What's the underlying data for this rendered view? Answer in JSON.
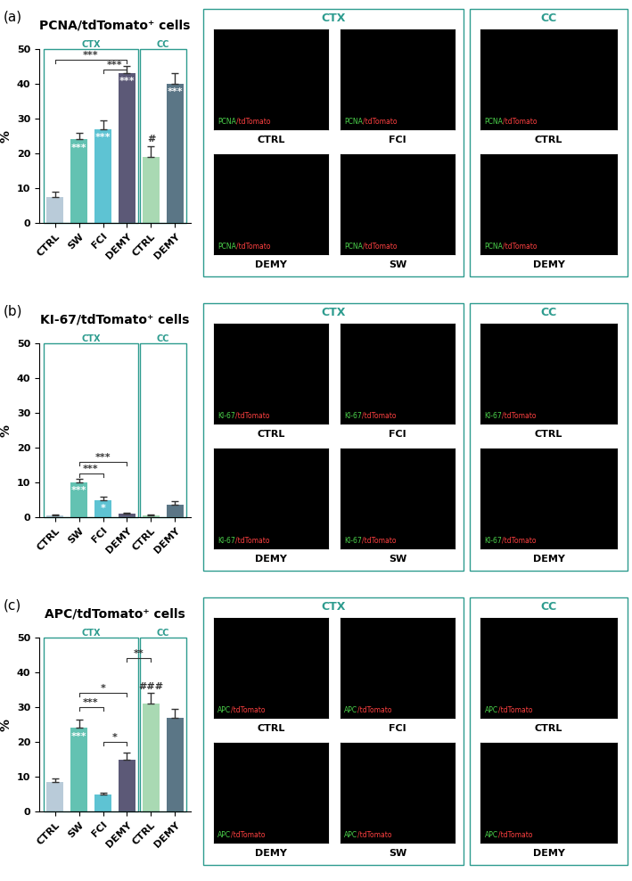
{
  "chart_data": [
    {
      "type": "bar",
      "panel_label": "(a)",
      "title": "PCNA/tdTomato⁺ cells",
      "y_label": "%",
      "categories": [
        "CTRL",
        "SW",
        "FCI",
        "DEMY",
        "CTRL",
        "DEMY"
      ],
      "values": [
        7.5,
        24,
        27,
        43,
        19,
        40
      ],
      "errors": [
        1.5,
        2,
        2.5,
        2,
        3,
        3
      ],
      "colors": [
        "#b9cbd9",
        "#63c2b2",
        "#5ec3d3",
        "#5c5977",
        "#a9d9b3",
        "#5b7686"
      ],
      "groups": [
        {
          "label": "CTX",
          "start": 0,
          "end": 3
        },
        {
          "label": "CC",
          "start": 4,
          "end": 5
        }
      ],
      "bar_marks": [
        null,
        "***",
        "***",
        "***",
        null,
        "***"
      ],
      "above_marks": [
        null,
        null,
        null,
        null,
        "#",
        null
      ],
      "brackets": [
        {
          "from": 0,
          "to": 3,
          "label": "***",
          "y": 47
        },
        {
          "from": 2,
          "to": 3,
          "label": "***",
          "y": 44
        }
      ],
      "ylim": [
        0,
        50
      ],
      "yticks": [
        0,
        10,
        20,
        30,
        40,
        50
      ]
    },
    {
      "type": "bar",
      "panel_label": "(b)",
      "title": "KI-67/tdTomato⁺ cells",
      "y_label": "%",
      "categories": [
        "CTRL",
        "SW",
        "FCI",
        "DEMY",
        "CTRL",
        "DEMY"
      ],
      "values": [
        0.5,
        10,
        5,
        1,
        0.5,
        3.5
      ],
      "errors": [
        0.3,
        1,
        1,
        0.4,
        0.2,
        1
      ],
      "colors": [
        "#b9cbd9",
        "#63c2b2",
        "#5ec3d3",
        "#5c5977",
        "#a9d9b3",
        "#5b7686"
      ],
      "groups": [
        {
          "label": "CTX",
          "start": 0,
          "end": 3
        },
        {
          "label": "CC",
          "start": 4,
          "end": 5
        }
      ],
      "bar_marks": [
        null,
        "***",
        "*",
        null,
        null,
        null
      ],
      "above_marks": [
        null,
        null,
        null,
        null,
        null,
        null
      ],
      "brackets": [
        {
          "from": 1,
          "to": 3,
          "label": "***",
          "y": 16
        },
        {
          "from": 1,
          "to": 2,
          "label": "***",
          "y": 12.5
        }
      ],
      "ylim": [
        0,
        50
      ],
      "yticks": [
        0,
        10,
        20,
        30,
        40,
        50
      ]
    },
    {
      "type": "bar",
      "panel_label": "(c)",
      "title": "APC/tdTomato⁺ cells",
      "y_label": "%",
      "categories": [
        "CTRL",
        "SW",
        "FCI",
        "DEMY",
        "CTRL",
        "DEMY"
      ],
      "values": [
        8.5,
        24,
        4.8,
        15,
        31,
        27
      ],
      "errors": [
        1,
        2.5,
        0.7,
        2,
        3,
        2.5
      ],
      "colors": [
        "#b9cbd9",
        "#63c2b2",
        "#5ec3d3",
        "#5c5977",
        "#a9d9b3",
        "#5b7686"
      ],
      "groups": [
        {
          "label": "CTX",
          "start": 0,
          "end": 3
        },
        {
          "label": "CC",
          "start": 4,
          "end": 5
        }
      ],
      "bar_marks": [
        null,
        "***",
        null,
        null,
        null,
        null
      ],
      "above_marks": [
        null,
        null,
        null,
        null,
        "###",
        null
      ],
      "brackets": [
        {
          "from": 3,
          "to": 4,
          "label": "**",
          "y": 44
        },
        {
          "from": 1,
          "to": 3,
          "label": "*",
          "y": 34
        },
        {
          "from": 1,
          "to": 2,
          "label": "***",
          "y": 30
        },
        {
          "from": 2,
          "to": 3,
          "label": "*",
          "y": 20
        }
      ],
      "ylim": [
        0,
        50
      ],
      "yticks": [
        0,
        10,
        20,
        30,
        40,
        50
      ]
    }
  ],
  "micrographs": [
    {
      "stain": "PCNA/tdTomato",
      "ctx_title": "CTX",
      "ctx_panels": [
        "CTRL",
        "FCI",
        "DEMY",
        "SW"
      ],
      "cc_title": "CC",
      "cc_panels": [
        "CTRL",
        "DEMY"
      ]
    },
    {
      "stain": "KI-67/tdTomato",
      "ctx_title": "CTX",
      "ctx_panels": [
        "CTRL",
        "FCI",
        "DEMY",
        "SW"
      ],
      "cc_title": "CC",
      "cc_panels": [
        "CTRL",
        "DEMY"
      ]
    },
    {
      "stain": "APC/tdTomato",
      "ctx_title": "CTX",
      "ctx_panels": [
        "CTRL",
        "FCI",
        "DEMY",
        "SW"
      ],
      "cc_title": "CC",
      "cc_panels": [
        "CTRL",
        "DEMY"
      ]
    }
  ]
}
